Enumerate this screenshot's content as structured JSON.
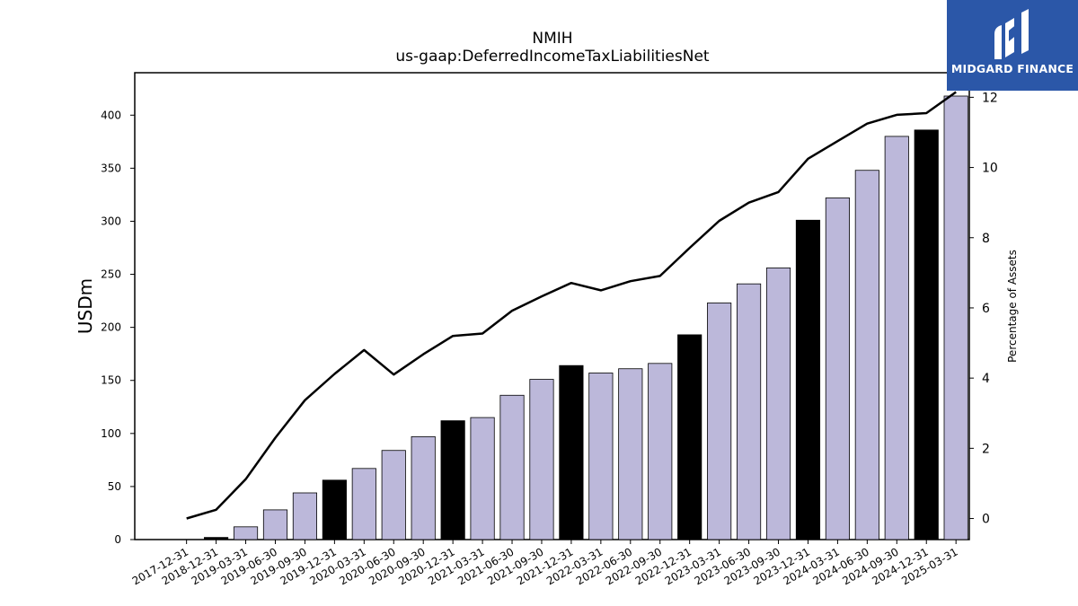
{
  "chart_data": {
    "type": "bar",
    "title": "NMIH",
    "subtitle": "us-gaap:DeferredIncomeTaxLiabilitiesNet",
    "ylabel": "USDm",
    "y2label": "Percentage of Assets",
    "ylim": [
      0,
      440
    ],
    "y2lim": [
      -0.6,
      12.7
    ],
    "yticks": [
      0,
      50,
      100,
      150,
      200,
      250,
      300,
      350,
      400
    ],
    "y2ticks": [
      0,
      2,
      4,
      6,
      8,
      10,
      12
    ],
    "grid": false,
    "categories": [
      "2017-12-31",
      "2018-12-31",
      "2019-03-31",
      "2019-06-30",
      "2019-09-30",
      "2019-12-31",
      "2020-03-31",
      "2020-06-30",
      "2020-09-30",
      "2020-12-31",
      "2021-03-31",
      "2021-06-30",
      "2021-09-30",
      "2021-12-31",
      "2022-03-31",
      "2022-06-30",
      "2022-09-30",
      "2022-12-31",
      "2023-03-31",
      "2023-06-30",
      "2023-09-30",
      "2023-12-31",
      "2024-03-31",
      "2024-06-30",
      "2024-09-30",
      "2024-12-31",
      "2025-03-31"
    ],
    "series": [
      {
        "kind": "bar",
        "values": [
          0,
          2,
          12,
          28,
          44,
          56,
          67,
          84,
          97,
          112,
          115,
          136,
          151,
          164,
          157,
          161,
          166,
          193,
          223,
          241,
          256,
          301,
          322,
          348,
          380,
          386,
          418
        ],
        "annual": [
          true,
          true,
          false,
          false,
          false,
          true,
          false,
          false,
          false,
          true,
          false,
          false,
          false,
          true,
          false,
          false,
          false,
          true,
          false,
          false,
          false,
          true,
          false,
          false,
          false,
          true,
          false
        ],
        "color_annual": "#000000",
        "color_quarterly": "#bcb8da",
        "axis": "left"
      },
      {
        "kind": "line",
        "values": [
          0.0,
          0.25,
          1.12,
          2.3,
          3.37,
          4.12,
          4.8,
          4.1,
          4.68,
          5.2,
          5.27,
          5.92,
          6.33,
          6.71,
          6.5,
          6.76,
          6.91,
          7.71,
          8.48,
          9.0,
          9.3,
          10.25,
          10.75,
          11.25,
          11.5,
          11.55,
          12.15
        ],
        "color": "#000000",
        "axis": "right"
      }
    ]
  },
  "logo": {
    "text": "MIDGARD FINANCE",
    "bg": "#2b57a8"
  }
}
